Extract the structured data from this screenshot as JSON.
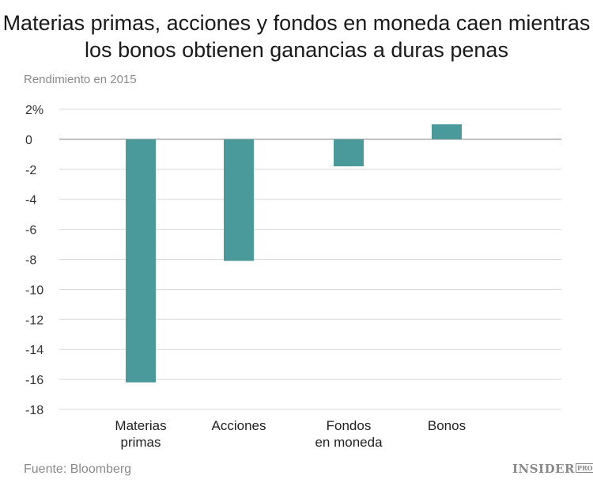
{
  "title_line1": "Materias primas, acciones y fondos en moneda caen mientras",
  "title_line2": "los bonos obtienen ganancias a duras penas",
  "subtitle": "Rendimiento en 2015",
  "source": "Fuente: Bloomberg",
  "brand": {
    "name": "INSIDER",
    "suffix": "PRO"
  },
  "colors": {
    "bar": "#4a9a9b",
    "grid": "#d9d9d9",
    "zero": "#9a9a9a"
  },
  "chart_data": {
    "type": "bar",
    "categories": [
      [
        "Materias",
        "primas"
      ],
      [
        "Acciones"
      ],
      [
        "Fondos",
        "en moneda"
      ],
      [
        "Bonos"
      ]
    ],
    "values": [
      -16.2,
      -8.1,
      -1.8,
      1.0
    ],
    "ylim": [
      -18,
      2
    ],
    "yticks": [
      2,
      0,
      -2,
      -4,
      -6,
      -8,
      -10,
      -12,
      -14,
      -16,
      -18
    ],
    "ytick_labels": [
      "2%",
      "0",
      "-2",
      "-4",
      "-6",
      "-8",
      "-10",
      "-12",
      "-14",
      "-16",
      "-18"
    ],
    "grid": true,
    "legend": "none"
  }
}
